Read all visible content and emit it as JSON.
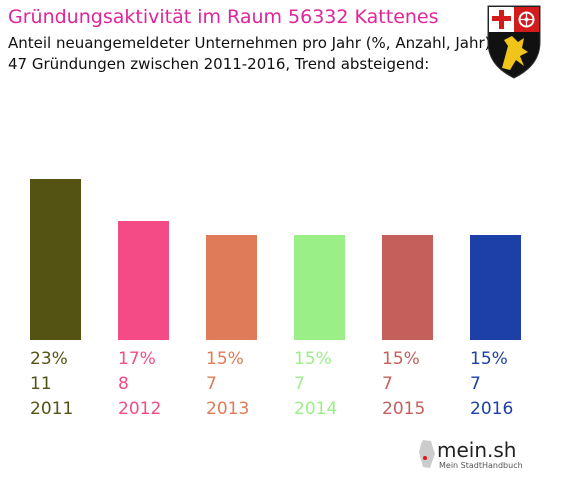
{
  "header": {
    "title": "Gründungsaktivität im Raum 56332 Kattenes",
    "subtitle_line1": "Anteil neuangemeldeter Unternehmen pro Jahr (%, Anzahl, Jahr)",
    "subtitle_line2": "47 Gründungen zwischen 2011-2016, Trend absteigend:"
  },
  "crest": {
    "icon": "rhineland-palatinate-coat-of-arms"
  },
  "logo": {
    "name": "mein.sh",
    "tagline": "Mein StadtHandbuch"
  },
  "chart_data": {
    "type": "bar",
    "categories": [
      "2011",
      "2012",
      "2013",
      "2014",
      "2015",
      "2016"
    ],
    "values": [
      23,
      17,
      15,
      15,
      15,
      15
    ],
    "percent_labels": [
      "23%",
      "17%",
      "15%",
      "15%",
      "15%",
      "15%"
    ],
    "counts": [
      "11",
      "8",
      "7",
      "7",
      "7",
      "7"
    ],
    "colors": [
      "#545314",
      "#f44b86",
      "#df7b58",
      "#9aef87",
      "#c45f5c",
      "#1d40a8"
    ],
    "ylim": [
      0,
      23
    ],
    "grid": false,
    "legend": "none"
  }
}
